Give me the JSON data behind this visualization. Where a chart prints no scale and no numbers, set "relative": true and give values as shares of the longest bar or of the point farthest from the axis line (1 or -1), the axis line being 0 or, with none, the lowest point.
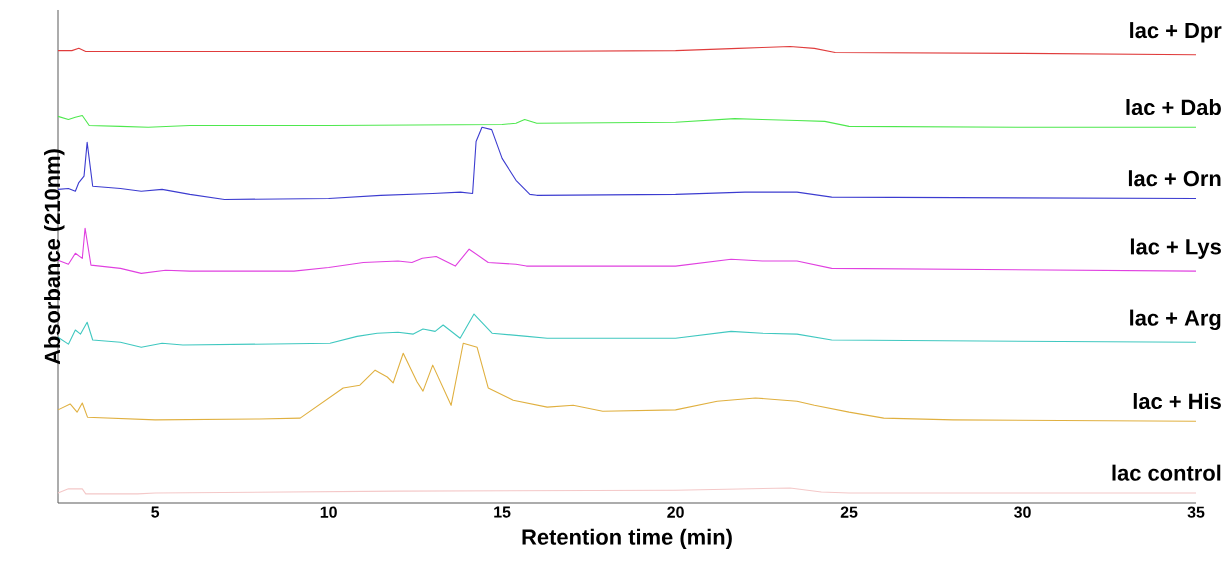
{
  "chart_data": {
    "type": "line",
    "relative": true,
    "xlabel": "Retention time (min)",
    "ylabel": "Absorbance (210nm)",
    "xlim": [
      2.2,
      35
    ],
    "xticks": [
      5,
      10,
      15,
      20,
      25,
      30,
      35
    ],
    "tick_labels": "x",
    "grid": false,
    "marker": "none",
    "line_style": "solid",
    "series": [
      {
        "name": "lac + Dpr",
        "color": "#e03c3c",
        "x": [
          2.2,
          2.6,
          2.8,
          3.0,
          5,
          10,
          15,
          20,
          21.8,
          22.5,
          23.3,
          24.0,
          24.6,
          30,
          35
        ],
        "values": [
          0.991,
          0.991,
          0.996,
          0.989,
          0.989,
          0.989,
          0.989,
          0.991,
          0.996,
          0.998,
          1.0,
          0.996,
          0.987,
          0.985,
          0.982
        ]
      },
      {
        "name": "lac + Dab",
        "color": "#4ee84e",
        "x": [
          2.2,
          2.5,
          2.7,
          2.9,
          3.1,
          4,
          4.8,
          6,
          10,
          15,
          15.4,
          15.65,
          16,
          20,
          21.7,
          22.5,
          23.5,
          24.3,
          25,
          30,
          35
        ],
        "values": [
          0.847,
          0.84,
          0.845,
          0.849,
          0.827,
          0.825,
          0.823,
          0.827,
          0.827,
          0.829,
          0.832,
          0.84,
          0.832,
          0.834,
          0.842,
          0.84,
          0.838,
          0.836,
          0.825,
          0.823,
          0.823
        ]
      },
      {
        "name": "lac + Orn",
        "color": "#3c3cd0",
        "x": [
          2.2,
          2.5,
          2.7,
          2.8,
          2.95,
          3.04,
          3.2,
          4,
          4.6,
          5.2,
          6,
          7,
          10,
          11.5,
          13,
          13.8,
          14.15,
          14.25,
          14.42,
          14.7,
          15.0,
          15.4,
          15.8,
          16,
          20,
          22,
          23.5,
          24.5,
          35
        ],
        "values": [
          0.687,
          0.689,
          0.683,
          0.702,
          0.716,
          0.79,
          0.694,
          0.689,
          0.683,
          0.687,
          0.676,
          0.665,
          0.667,
          0.674,
          0.678,
          0.681,
          0.678,
          0.792,
          0.823,
          0.818,
          0.755,
          0.707,
          0.676,
          0.674,
          0.676,
          0.681,
          0.681,
          0.67,
          0.667
        ]
      },
      {
        "name": "lac + Lys",
        "color": "#e040e0",
        "x": [
          2.2,
          2.5,
          2.7,
          2.9,
          2.98,
          3.15,
          4,
          4.6,
          5.3,
          6,
          9,
          10,
          11,
          12,
          12.4,
          12.7,
          13.1,
          13.65,
          14.05,
          14.6,
          15.4,
          15.7,
          20,
          21.6,
          22.5,
          23.5,
          24.5,
          35
        ],
        "values": [
          0.532,
          0.523,
          0.547,
          0.536,
          0.602,
          0.521,
          0.514,
          0.503,
          0.51,
          0.508,
          0.508,
          0.516,
          0.527,
          0.53,
          0.527,
          0.536,
          0.54,
          0.519,
          0.556,
          0.527,
          0.523,
          0.519,
          0.519,
          0.534,
          0.53,
          0.53,
          0.514,
          0.508
        ]
      },
      {
        "name": "lac + Arg",
        "color": "#40c8c0",
        "x": [
          2.2,
          2.5,
          2.7,
          2.85,
          3.04,
          3.2,
          4,
          4.6,
          5.2,
          5.8,
          10.04,
          10.82,
          11.4,
          12.0,
          12.44,
          12.72,
          13.07,
          13.3,
          13.79,
          14.19,
          14.71,
          15.72,
          16.3,
          20,
          21.6,
          22.5,
          23.5,
          24.5,
          35
        ],
        "values": [
          0.363,
          0.348,
          0.379,
          0.37,
          0.396,
          0.357,
          0.352,
          0.341,
          0.35,
          0.346,
          0.35,
          0.365,
          0.372,
          0.374,
          0.37,
          0.381,
          0.376,
          0.39,
          0.361,
          0.414,
          0.372,
          0.365,
          0.361,
          0.361,
          0.376,
          0.372,
          0.37,
          0.357,
          0.352
        ]
      },
      {
        "name": "lac + His",
        "color": "#e0b040",
        "x": [
          2.2,
          2.55,
          2.75,
          2.9,
          3.05,
          5,
          8,
          9.18,
          10.42,
          10.9,
          11.34,
          11.69,
          11.86,
          12.15,
          12.55,
          12.72,
          13.0,
          13.53,
          13.88,
          14.28,
          14.6,
          15.32,
          16.3,
          17.05,
          17.9,
          20,
          21.2,
          22.3,
          23.5,
          24.0,
          25,
          26,
          28,
          35
        ],
        "values": [
          0.204,
          0.217,
          0.199,
          0.219,
          0.188,
          0.182,
          0.184,
          0.186,
          0.252,
          0.258,
          0.291,
          0.276,
          0.263,
          0.328,
          0.265,
          0.245,
          0.302,
          0.214,
          0.35,
          0.341,
          0.252,
          0.225,
          0.21,
          0.214,
          0.201,
          0.204,
          0.223,
          0.23,
          0.223,
          0.214,
          0.199,
          0.186,
          0.182,
          0.179
        ]
      },
      {
        "name": "lac control",
        "color": "#f4c8c8",
        "x": [
          2.2,
          2.5,
          2.9,
          3.0,
          4.5,
          5,
          12,
          20,
          23.3,
          24.2,
          25,
          35
        ],
        "values": [
          0.022,
          0.031,
          0.031,
          0.02,
          0.02,
          0.022,
          0.026,
          0.028,
          0.033,
          0.024,
          0.022,
          0.022
        ]
      }
    ]
  }
}
